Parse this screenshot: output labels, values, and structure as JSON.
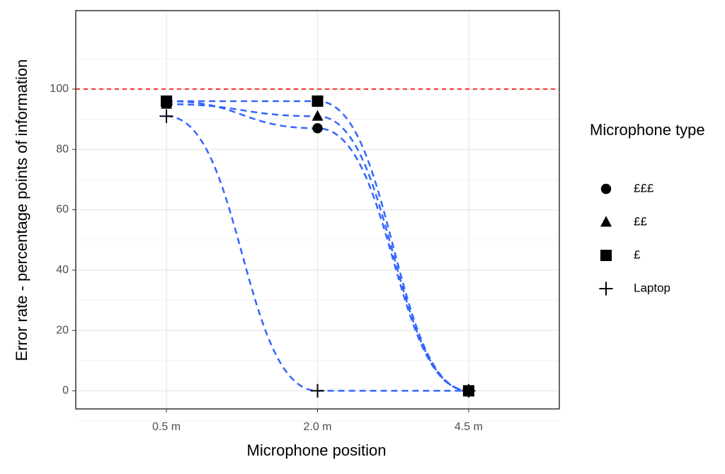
{
  "chart_data": {
    "type": "line",
    "x_label": "Microphone position",
    "y_label": "Error rate - percentage points of information",
    "categories": [
      "0.5 m",
      "2.0 m",
      "4.5 m"
    ],
    "legend_title": "Microphone type",
    "series": [
      {
        "name": "£££",
        "shape": "circle",
        "color": "#000000",
        "values": [
          96,
          87,
          0
        ]
      },
      {
        "name": "££",
        "shape": "triangle",
        "color": "#000000",
        "values": [
          95,
          91,
          0
        ]
      },
      {
        "name": "£",
        "shape": "square",
        "color": "#000000",
        "values": [
          96,
          96,
          0
        ]
      },
      {
        "name": "Laptop",
        "shape": "plus",
        "color": "#000000",
        "values": [
          91,
          0,
          0
        ]
      }
    ],
    "line_color": "#3366ff",
    "hline": 100,
    "hline_color": "#ff2a2a",
    "ylim": [
      -6,
      126
    ],
    "yticks": [
      0,
      20,
      40,
      60,
      80,
      100
    ],
    "grid": true,
    "legend": "right"
  }
}
